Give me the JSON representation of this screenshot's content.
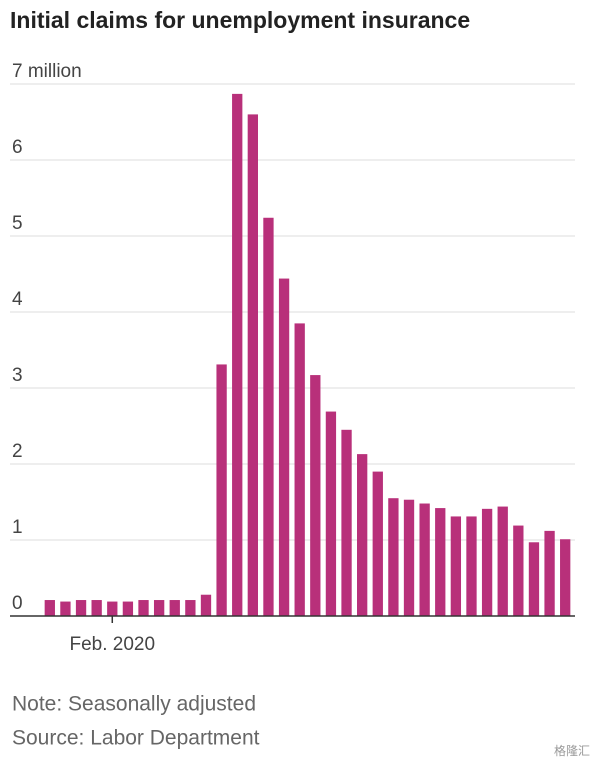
{
  "chart_data": {
    "type": "bar",
    "title": "Initial claims for unemployment insurance",
    "categories": [
      null,
      null,
      null,
      null,
      "Feb. 2020",
      null,
      null,
      null,
      null,
      null,
      null,
      null,
      null,
      null,
      null,
      null,
      null,
      null,
      null,
      null,
      null,
      null,
      null,
      null,
      null,
      null,
      null,
      null,
      null,
      null,
      null,
      null,
      null,
      null
    ],
    "values": [
      0.21,
      0.19,
      0.21,
      0.21,
      0.19,
      0.19,
      0.21,
      0.21,
      0.21,
      0.21,
      0.28,
      3.31,
      6.87,
      6.6,
      5.24,
      4.44,
      3.85,
      3.17,
      2.69,
      2.45,
      2.13,
      1.9,
      1.55,
      1.53,
      1.48,
      1.42,
      1.31,
      1.31,
      1.41,
      1.44,
      1.19,
      0.97,
      1.12,
      1.01
    ],
    "color": "#b8307a",
    "ylim": [
      0,
      7
    ],
    "yticks": [
      0,
      1,
      2,
      3,
      4,
      5,
      6,
      {
        "value": 7,
        "label": "7 million"
      }
    ],
    "grid": true,
    "note": "Note: Seasonally adjusted",
    "source": "Source: Labor Department",
    "watermark": "格隆汇"
  }
}
